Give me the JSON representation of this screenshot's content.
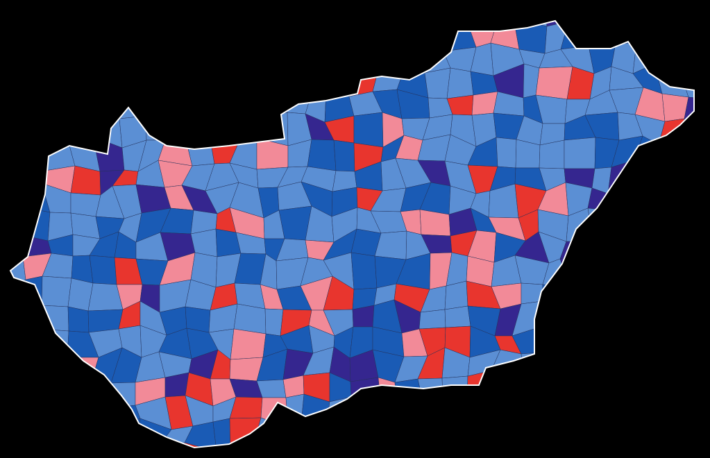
{
  "map": {
    "background": "#000000",
    "border": "#ffffff",
    "palette": [
      "#5b8fd4",
      "#5b8fd4",
      "#5b8fd4",
      "#5b8fd4",
      "#1a5bb5",
      "#1a5bb5",
      "#35268f",
      "#e8352e",
      "#f28a98",
      "#5b8fd4"
    ]
  }
}
